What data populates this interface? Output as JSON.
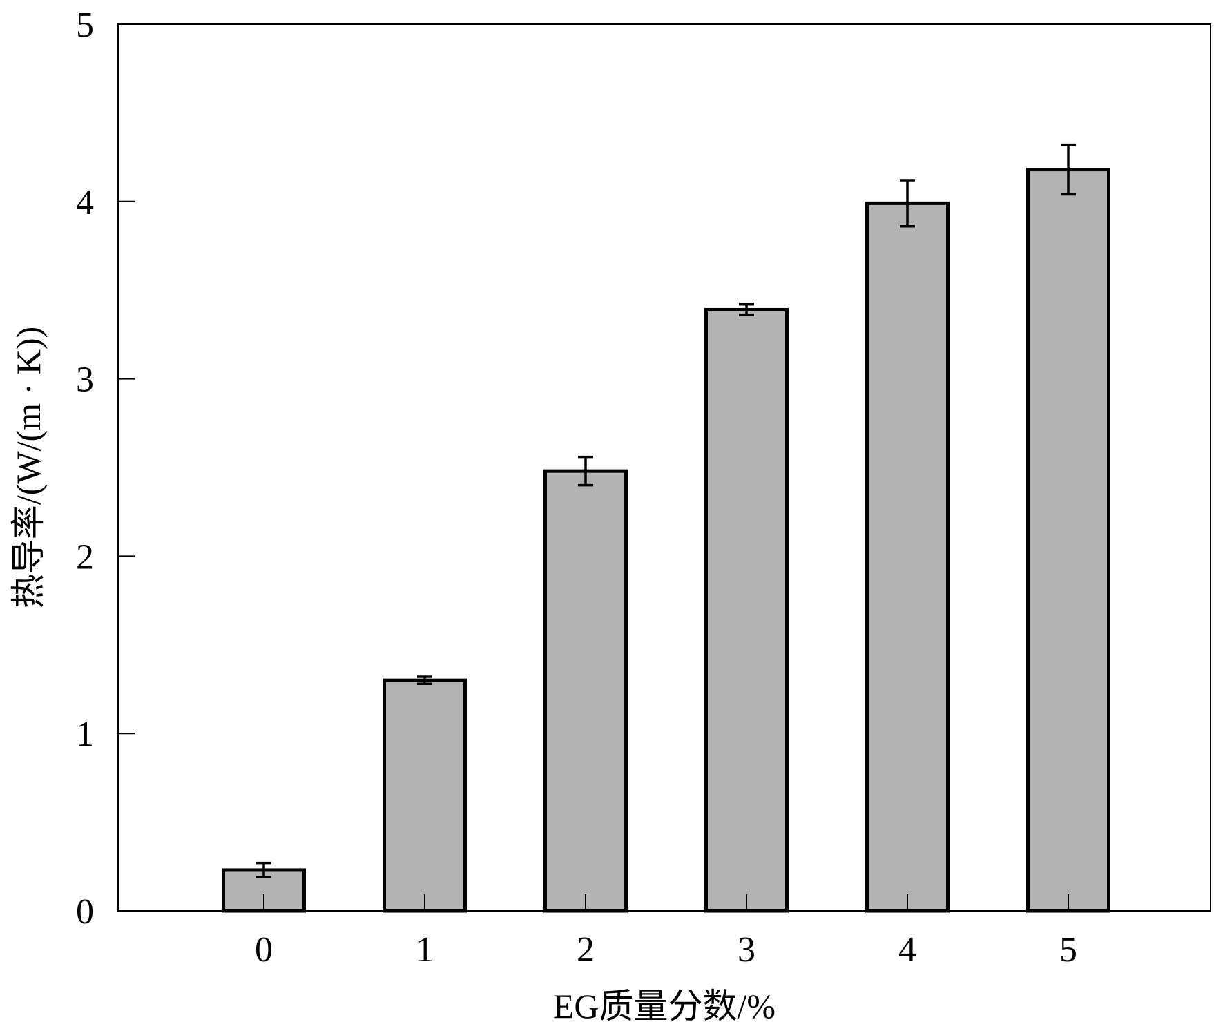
{
  "chart_data": {
    "type": "bar",
    "categories": [
      "0",
      "1",
      "2",
      "3",
      "4",
      "5"
    ],
    "values": [
      0.23,
      1.3,
      2.48,
      3.39,
      3.99,
      4.18
    ],
    "errors": [
      0.04,
      0.02,
      0.08,
      0.03,
      0.13,
      0.14
    ],
    "xlabel": "EG质量分数/%",
    "ylabel": "热导率/(W/(m · K))",
    "ylim": [
      0,
      5
    ],
    "yticks": [
      "0",
      "1",
      "2",
      "3",
      "4",
      "5"
    ],
    "grid": false,
    "bar_color": "#b3b3b3",
    "edge_color": "#000000"
  }
}
